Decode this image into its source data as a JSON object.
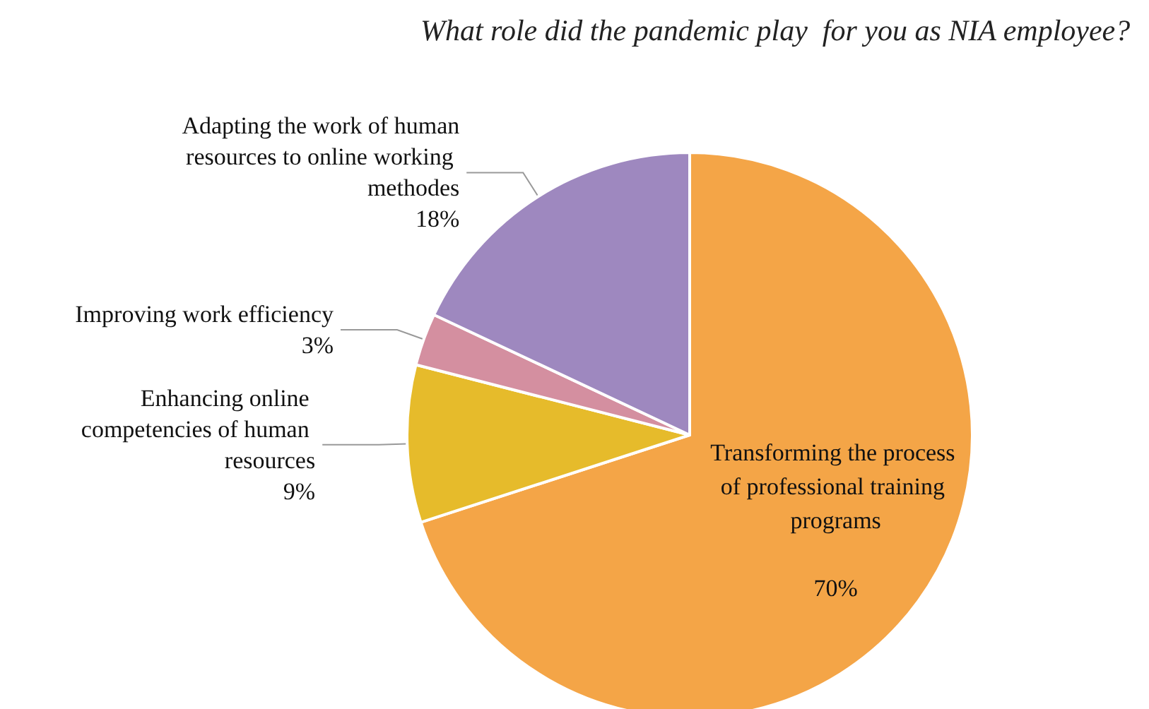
{
  "chart_data": {
    "type": "pie",
    "title": "What role did the pandemic play  for you as NIA employee?",
    "categories": [
      "Transforming the process of professional training programs",
      "Enhancing online competencies of human resources",
      "Improving work efficiency",
      "Adapting the work of human resources to online working methodes"
    ],
    "values": [
      70,
      9,
      3,
      18
    ],
    "value_labels": [
      "70%",
      "9%",
      "3%",
      "18%"
    ],
    "colors": [
      "#f4a547",
      "#e6bb2b",
      "#d48fa0",
      "#9e88bf"
    ],
    "legend": false
  }
}
